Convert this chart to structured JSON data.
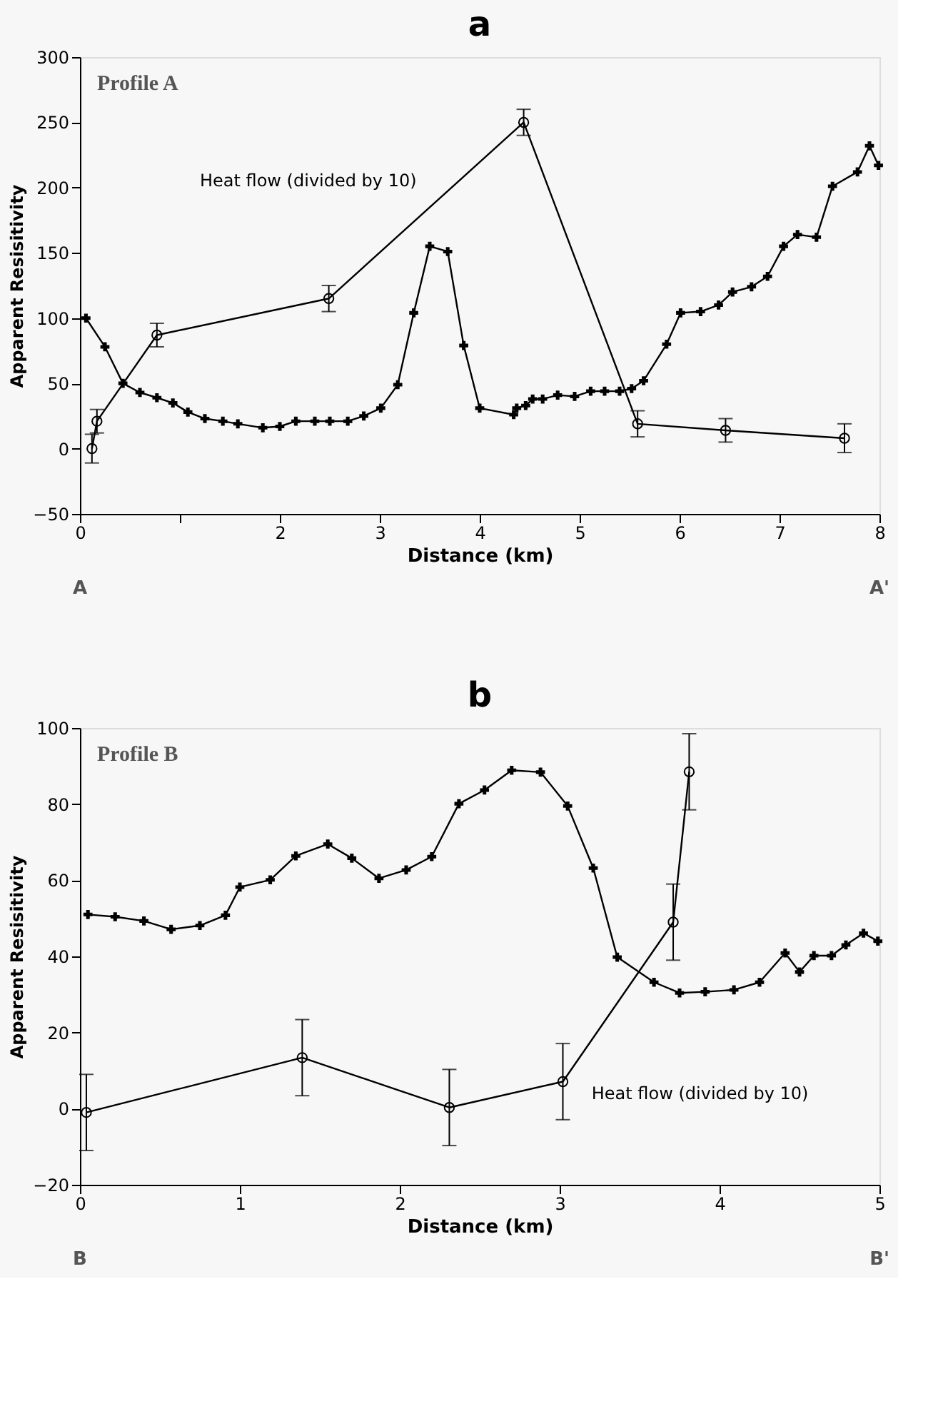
{
  "chart_data": [
    {
      "type": "line",
      "title": "a",
      "xlabel": "Distance (km)",
      "ylabel": "Apparent Resisitivity",
      "annotations": [
        "Profile A",
        "A",
        "A'"
      ],
      "xlim": [
        0,
        8
      ],
      "xticks": [
        0,
        {
          "value": 1,
          "label": null
        },
        2,
        3,
        4,
        5,
        6,
        7,
        8
      ],
      "ylim": [
        -50,
        300
      ],
      "yticks": [
        -50,
        0,
        50,
        100,
        150,
        200,
        250,
        300
      ],
      "grid": false,
      "legend": false,
      "series": [
        {
          "color": "#000000",
          "marker": "cross",
          "x": [
            0.06,
            0.25,
            0.43,
            0.6,
            0.77,
            0.93,
            1.08,
            1.25,
            1.43,
            1.58,
            1.83,
            2.0,
            2.16,
            2.35,
            2.5,
            2.68,
            2.84,
            3.01,
            3.18,
            3.34,
            3.5,
            3.68,
            3.84,
            4.0,
            4.34,
            4.37,
            4.46,
            4.53,
            4.63,
            4.78,
            4.95,
            5.11,
            5.25,
            5.4,
            5.52,
            5.64,
            5.87,
            6.01,
            6.21,
            6.39,
            6.53,
            6.72,
            6.88,
            7.04,
            7.18,
            7.37,
            7.53,
            7.78,
            7.9,
            7.99
          ],
          "values": [
            100,
            78,
            50,
            43,
            39,
            35,
            28,
            23,
            21,
            19,
            16,
            17,
            21,
            21,
            21,
            21,
            25,
            31,
            49,
            104,
            155,
            151,
            79,
            31,
            26,
            31,
            33,
            38,
            38,
            41,
            40,
            44,
            44,
            44,
            46,
            52,
            80,
            104,
            105,
            110,
            120,
            124,
            132,
            155,
            164,
            162,
            201,
            212,
            232,
            217
          ]
        },
        {
          "name": "Heat flow (divided by 10)",
          "color": "#000000",
          "marker": "circle",
          "x": [
            0.12,
            0.17,
            0.77,
            2.49,
            4.44,
            5.58,
            6.46,
            7.65
          ],
          "values": [
            0,
            21,
            87,
            115,
            250,
            19,
            14,
            8
          ],
          "errors": [
            11,
            9,
            9,
            10,
            10,
            10,
            9,
            11
          ]
        }
      ]
    },
    {
      "type": "line",
      "title": "b",
      "xlabel": "Distance (km)",
      "ylabel": "Apparent Resisitivity",
      "annotations": [
        "Profile B",
        "B",
        "B'"
      ],
      "xlim": [
        0,
        5
      ],
      "xticks": [
        0,
        1,
        2,
        3,
        4,
        5
      ],
      "ylim": [
        -20,
        100
      ],
      "yticks": [
        -20,
        0,
        20,
        40,
        60,
        80,
        100
      ],
      "grid": false,
      "legend": false,
      "series": [
        {
          "color": "#000000",
          "marker": "cross",
          "x": [
            0.05,
            0.22,
            0.4,
            0.57,
            0.75,
            0.91,
            1.0,
            1.19,
            1.35,
            1.55,
            1.7,
            1.87,
            2.04,
            2.2,
            2.37,
            2.53,
            2.7,
            2.88,
            3.05,
            3.21,
            3.36,
            3.59,
            3.75,
            3.91,
            4.09,
            4.25,
            4.41,
            4.5,
            4.59,
            4.7,
            4.79,
            4.9,
            4.99
          ],
          "values": [
            51,
            50.4,
            49.3,
            47.1,
            48.1,
            50.8,
            58.2,
            60.1,
            66.4,
            69.5,
            65.8,
            60.5,
            62.7,
            66.2,
            80.1,
            83.7,
            88.9,
            88.4,
            79.5,
            63.2,
            39.8,
            33.2,
            30.4,
            30.7,
            31.2,
            33.2,
            40.9,
            35.9,
            40.2,
            40.2,
            43,
            46.1,
            44
          ]
        },
        {
          "name": "Heat flow (divided by 10)",
          "color": "#000000",
          "marker": "circle",
          "x": [
            0.04,
            1.39,
            2.31,
            3.02,
            3.71,
            3.81
          ],
          "values": [
            -1,
            13.4,
            0.3,
            7.1,
            49,
            88.5
          ],
          "errors": [
            10,
            10,
            10,
            10,
            10,
            10
          ]
        }
      ]
    }
  ]
}
